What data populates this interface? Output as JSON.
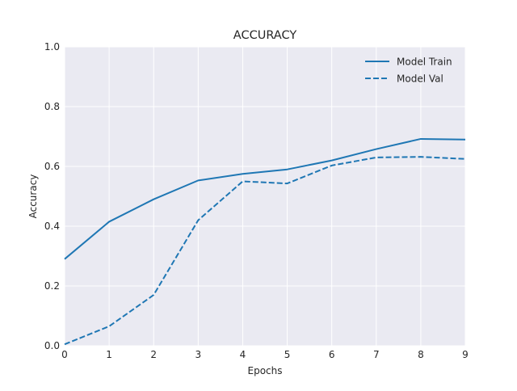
{
  "chart_data": {
    "type": "line",
    "title": "ACCURACY",
    "xlabel": "Epochs",
    "ylabel": "Accuracy",
    "x": [
      0,
      1,
      2,
      3,
      4,
      5,
      6,
      7,
      8,
      9
    ],
    "xlim": [
      0,
      9
    ],
    "ylim": [
      0.0,
      1.0
    ],
    "xticks": [
      "0",
      "1",
      "2",
      "3",
      "4",
      "5",
      "6",
      "7",
      "8",
      "9"
    ],
    "yticks": [
      "0.0",
      "0.2",
      "0.4",
      "0.6",
      "0.8",
      "1.0"
    ],
    "grid": true,
    "legend_position": "top-right",
    "series": [
      {
        "name": "Model Train",
        "style": "solid",
        "color": "#1f77b4",
        "values": [
          0.29,
          0.415,
          0.49,
          0.553,
          0.575,
          0.59,
          0.62,
          0.658,
          0.692,
          0.69
        ]
      },
      {
        "name": "Model Val",
        "style": "dashed",
        "color": "#1f77b4",
        "values": [
          0.005,
          0.065,
          0.17,
          0.42,
          0.55,
          0.543,
          0.603,
          0.63,
          0.632,
          0.625
        ]
      }
    ],
    "colors": {
      "plot_background": "#eaeaf2",
      "grid": "#ffffff",
      "text": "#262626"
    }
  }
}
